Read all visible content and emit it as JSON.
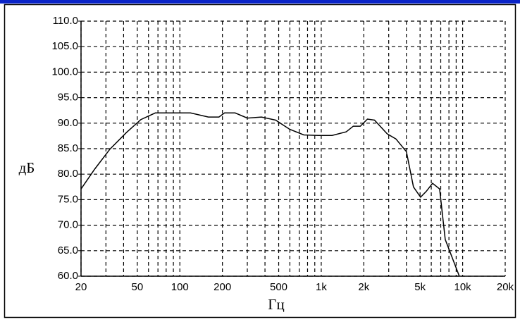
{
  "chart_data": {
    "type": "line",
    "xscale": "log",
    "grid": true,
    "xlabel": "Гц",
    "ylabel": "дБ",
    "x": [
      20,
      25,
      32,
      42,
      53,
      67,
      84,
      119,
      159,
      189,
      207,
      246,
      300,
      378,
      476,
      598,
      753,
      948,
      1193,
      1502,
      1685,
      1891,
      2122,
      2381,
      2930,
      3372,
      4003,
      4492,
      5040,
      5520,
      6126,
      6873,
      7530,
      9477
    ],
    "series": [
      {
        "color": "#000000",
        "values": [
          77.1,
          81.0,
          84.9,
          88.2,
          90.7,
          92.0,
          92.0,
          92.0,
          91.2,
          91.2,
          92.0,
          92.0,
          91.0,
          91.2,
          90.6,
          88.8,
          87.7,
          87.6,
          87.6,
          88.3,
          89.4,
          89.4,
          90.8,
          90.6,
          87.9,
          86.9,
          84.4,
          77.5,
          75.5,
          76.6,
          78.2,
          77.1,
          67.2,
          60.0
        ]
      }
    ],
    "xlim": [
      20,
      20000
    ],
    "xticks": [
      20,
      50,
      100,
      200,
      500,
      {
        "value": 1000,
        "label": "1k"
      },
      {
        "value": 2000,
        "label": "2k"
      },
      {
        "value": 5000,
        "label": "5k"
      },
      {
        "value": 10000,
        "label": "10k"
      },
      {
        "value": 20000,
        "label": "20k"
      }
    ],
    "xminor": [
      30,
      40,
      60,
      70,
      80,
      90,
      300,
      400,
      600,
      700,
      800,
      900,
      3000,
      4000,
      6000,
      7000,
      8000,
      9000
    ],
    "ylim": [
      60,
      110
    ],
    "yticks": [
      {
        "value": 60,
        "label": "60.0"
      },
      {
        "value": 65,
        "label": "65.0"
      },
      {
        "value": 70,
        "label": "70.0"
      },
      {
        "value": 75,
        "label": "75.0"
      },
      {
        "value": 80,
        "label": "80.0"
      },
      {
        "value": 85,
        "label": "85.0"
      },
      {
        "value": 90,
        "label": "90.0"
      },
      {
        "value": 95,
        "label": "95.0"
      },
      {
        "value": 100,
        "label": "100.0"
      },
      {
        "value": 105,
        "label": "105.0"
      },
      {
        "value": 110,
        "label": "110.0"
      }
    ]
  }
}
